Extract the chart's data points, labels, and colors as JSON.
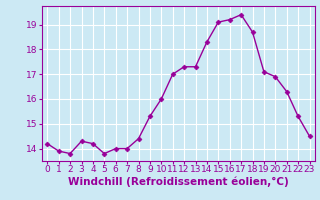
{
  "x": [
    0,
    1,
    2,
    3,
    4,
    5,
    6,
    7,
    8,
    9,
    10,
    11,
    12,
    13,
    14,
    15,
    16,
    17,
    18,
    19,
    20,
    21,
    22,
    23
  ],
  "y": [
    14.2,
    13.9,
    13.8,
    14.3,
    14.2,
    13.8,
    14.0,
    14.0,
    14.4,
    15.3,
    16.0,
    17.0,
    17.3,
    17.3,
    18.3,
    19.1,
    19.2,
    19.4,
    18.7,
    17.1,
    16.9,
    16.3,
    15.3,
    14.5
  ],
  "xlabel": "Windchill (Refroidissement éolien,°C)",
  "ylim": [
    13.5,
    19.75
  ],
  "xlim": [
    -0.5,
    23.5
  ],
  "yticks": [
    14,
    15,
    16,
    17,
    18,
    19
  ],
  "xticks": [
    0,
    1,
    2,
    3,
    4,
    5,
    6,
    7,
    8,
    9,
    10,
    11,
    12,
    13,
    14,
    15,
    16,
    17,
    18,
    19,
    20,
    21,
    22,
    23
  ],
  "line_color": "#990099",
  "marker": "D",
  "marker_size": 2.5,
  "bg_color": "#cce9f4",
  "grid_color": "#ffffff",
  "tick_color": "#990099",
  "label_color": "#990099",
  "spine_color": "#990099",
  "xlabel_fontsize": 7.5,
  "tick_fontsize": 6.5
}
